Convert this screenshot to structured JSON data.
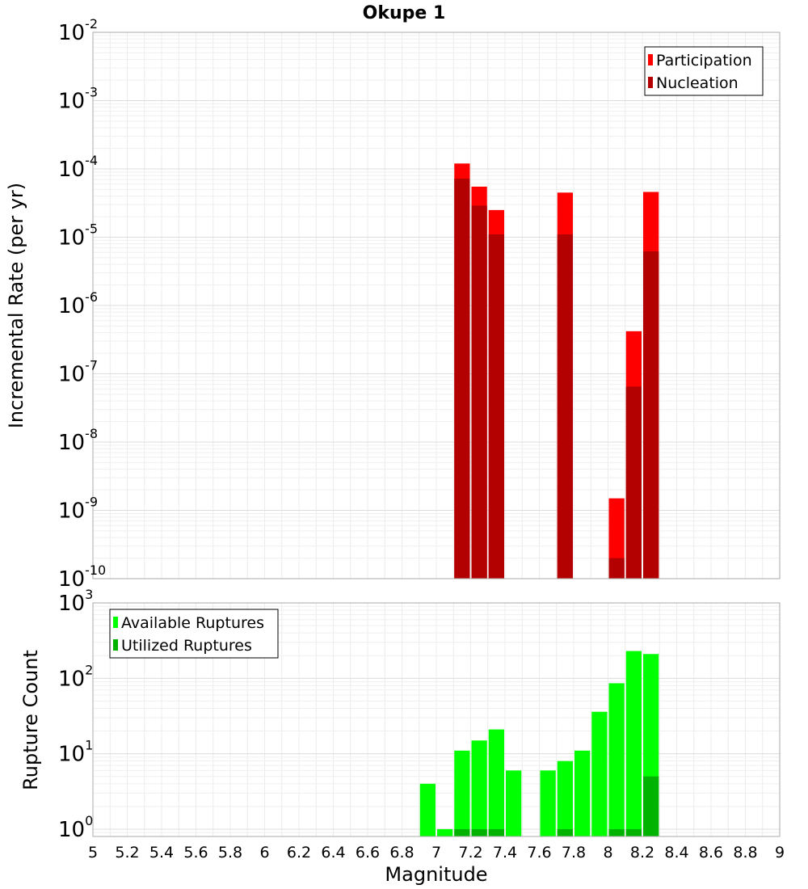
{
  "chart_data": [
    {
      "type": "bar",
      "title": "Okupe 1",
      "xlabel": "",
      "ylabel": "Incremental Rate (per yr)",
      "yscale": "log",
      "ylim": [
        1e-10,
        0.01
      ],
      "xlim": [
        5,
        9
      ],
      "grid": true,
      "legend": "top-right",
      "overlay": true,
      "y_ticks": [
        "10|-10",
        "10|-9",
        "10|-8",
        "10|-7",
        "10|-6",
        "10|-5",
        "10|-4",
        "10|-3",
        "10|-2"
      ],
      "series": [
        {
          "name": "Participation",
          "color": "#ff0000",
          "points": [
            {
              "x": 7.15,
              "y": 0.00012
            },
            {
              "x": 7.25,
              "y": 5.5e-05
            },
            {
              "x": 7.35,
              "y": 2.5e-05
            },
            {
              "x": 7.75,
              "y": 4.5e-05
            },
            {
              "x": 8.05,
              "y": 1.5e-09
            },
            {
              "x": 8.15,
              "y": 4.2e-07
            },
            {
              "x": 8.25,
              "y": 4.6e-05
            }
          ]
        },
        {
          "name": "Nucleation",
          "color": "#b30000",
          "points": [
            {
              "x": 7.15,
              "y": 7.2e-05
            },
            {
              "x": 7.25,
              "y": 2.9e-05
            },
            {
              "x": 7.35,
              "y": 1.1e-05
            },
            {
              "x": 7.75,
              "y": 1.1e-05
            },
            {
              "x": 8.05,
              "y": 2e-10
            },
            {
              "x": 8.15,
              "y": 6.5e-08
            },
            {
              "x": 8.25,
              "y": 6.2e-06
            }
          ]
        }
      ]
    },
    {
      "type": "bar",
      "title": "",
      "xlabel": "Magnitude",
      "ylabel": "Rupture Count",
      "yscale": "log",
      "ylim": [
        0.8,
        1000
      ],
      "xlim": [
        5,
        9
      ],
      "grid": true,
      "legend": "top-left",
      "overlay": true,
      "x_ticks": [
        "5",
        "5.2",
        "5.4",
        "5.6",
        "5.8",
        "6",
        "6.2",
        "6.4",
        "6.6",
        "6.8",
        "7",
        "7.2",
        "7.4",
        "7.6",
        "7.8",
        "8",
        "8.2",
        "8.4",
        "8.6",
        "8.8",
        "9"
      ],
      "y_ticks": [
        "10|0",
        "10|1",
        "10|2",
        "10|3"
      ],
      "series": [
        {
          "name": "Available Ruptures",
          "color": "#00ff00",
          "points": [
            {
              "x": 6.95,
              "y": 4
            },
            {
              "x": 7.05,
              "y": 1
            },
            {
              "x": 7.15,
              "y": 11
            },
            {
              "x": 7.25,
              "y": 15
            },
            {
              "x": 7.35,
              "y": 21
            },
            {
              "x": 7.45,
              "y": 6
            },
            {
              "x": 7.65,
              "y": 6
            },
            {
              "x": 7.75,
              "y": 8
            },
            {
              "x": 7.85,
              "y": 11
            },
            {
              "x": 7.95,
              "y": 36
            },
            {
              "x": 8.05,
              "y": 86
            },
            {
              "x": 8.15,
              "y": 230
            },
            {
              "x": 8.25,
              "y": 210
            }
          ]
        },
        {
          "name": "Utilized Ruptures",
          "color": "#00b300",
          "points": [
            {
              "x": 7.15,
              "y": 1
            },
            {
              "x": 7.25,
              "y": 1
            },
            {
              "x": 7.35,
              "y": 1
            },
            {
              "x": 7.75,
              "y": 1
            },
            {
              "x": 8.05,
              "y": 1
            },
            {
              "x": 8.15,
              "y": 1
            },
            {
              "x": 8.25,
              "y": 5
            }
          ]
        }
      ]
    }
  ]
}
